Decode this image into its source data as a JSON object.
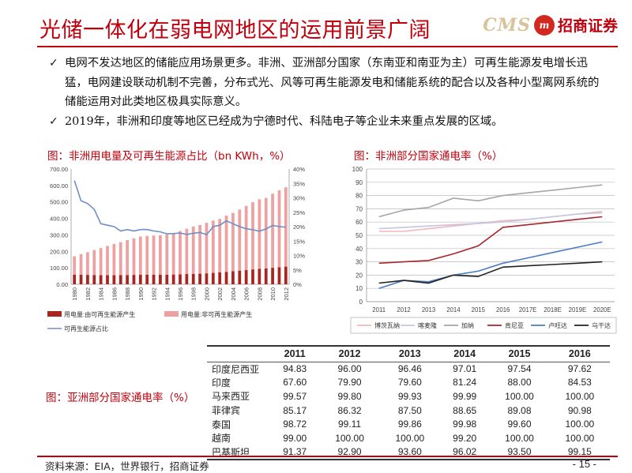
{
  "header": {
    "title": "光储一体化在弱电网地区的运用前景广阔",
    "logo_cms": "CMS",
    "logo_mark": "m",
    "logo_cn": "招商证券"
  },
  "bullets": [
    {
      "text": "电网不发达地区的储能应用场景更多。非洲、亚洲部分国家（东南亚和南亚为主）可再生能源发电增长迅猛，电网建设联动机制不完善，分布式光、风等可再生能源发电和储能系统的配合以及各种小型离网系统的储能运用对此类地区极具实际意义。"
    },
    {
      "text": "2019年，非洲和印度等地区已经成为宁德时代、科陆电子等企业未来重点发展的区域。"
    }
  ],
  "bullet_mark": "✓",
  "chart_data": [
    {
      "type": "bar",
      "title": "图：非洲用电量及可再生能源占比（bn KWh，%）",
      "categories": [
        "1980",
        "1981",
        "1982",
        "1983",
        "1984",
        "1985",
        "1986",
        "1987",
        "1988",
        "1989",
        "1990",
        "1991",
        "1992",
        "1993",
        "1994",
        "1995",
        "1996",
        "1997",
        "1998",
        "1999",
        "2000",
        "2001",
        "2002",
        "2003",
        "2004",
        "2005",
        "2006",
        "2007",
        "2008",
        "2009",
        "2010",
        "2011",
        "2012"
      ],
      "left_axis": {
        "ylim": [
          0,
          700
        ],
        "ticks": [
          "0.00",
          "100.00",
          "200.00",
          "300.00",
          "400.00",
          "500.00",
          "600.00",
          "700.00"
        ]
      },
      "right_axis": {
        "ylim": [
          0,
          40
        ],
        "ticks": [
          "0%",
          "5%",
          "10%",
          "15%",
          "20%",
          "25%",
          "30%",
          "35%",
          "40%"
        ]
      },
      "series": [
        {
          "name": "用电量:由可再生能源产生",
          "kind": "bar-stack",
          "color": "#a8261f",
          "values": [
            58,
            58,
            57,
            56,
            55,
            55,
            55,
            56,
            56,
            57,
            58,
            58,
            58,
            58,
            58,
            59,
            60,
            62,
            63,
            64,
            66,
            69,
            72,
            75,
            79,
            82,
            86,
            90,
            94,
            96,
            100,
            103,
            107
          ]
        },
        {
          "name": "用电量:非可再生能源产生",
          "kind": "bar-stack",
          "color": "#eea1a1",
          "values": [
            112,
            125,
            138,
            152,
            165,
            178,
            190,
            200,
            212,
            222,
            232,
            236,
            238,
            240,
            244,
            252,
            263,
            275,
            288,
            296,
            307,
            318,
            325,
            342,
            354,
            372,
            390,
            408,
            422,
            428,
            450,
            468,
            482
          ]
        },
        {
          "name": "可再生能源占比",
          "kind": "line",
          "axis": "right",
          "color": "#6d8ec8",
          "values": [
            36,
            29,
            28,
            26,
            21,
            20.5,
            20,
            18.5,
            19,
            18.5,
            19,
            19,
            18.5,
            18.2,
            17.5,
            17.6,
            17.8,
            17.3,
            17.7,
            18,
            17.2,
            20,
            20.5,
            22,
            21,
            20,
            19.3,
            18.9,
            18.4,
            19.2,
            20.4,
            20,
            19.8
          ]
        }
      ]
    },
    {
      "type": "line",
      "title": "图：非洲部分国家通电率（%）",
      "categories": [
        "2011",
        "2012",
        "2013",
        "2014",
        "2015",
        "2016",
        "2017E",
        "2018E",
        "2019E",
        "2020E"
      ],
      "ylim": [
        0,
        100
      ],
      "yticks": [
        "0",
        "10",
        "20",
        "30",
        "40",
        "50",
        "60",
        "70",
        "80",
        "90",
        "100"
      ],
      "series": [
        {
          "name": "博茨瓦纳",
          "color": "#f0b8b8",
          "values": [
            53,
            53,
            55,
            57,
            59,
            61,
            62,
            64,
            66,
            67
          ]
        },
        {
          "name": "喀麦隆",
          "color": "#c8c4e0",
          "values": [
            55,
            56,
            57,
            58,
            59,
            60,
            62,
            64,
            66,
            68
          ]
        },
        {
          "name": "加纳",
          "color": "#a6a6a6",
          "values": [
            64,
            69,
            71,
            78,
            76,
            80,
            82,
            84,
            86,
            88
          ]
        },
        {
          "name": "肯尼亚",
          "color": "#a8262c",
          "values": [
            29,
            30,
            31,
            36,
            42,
            56,
            58,
            60,
            62,
            64
          ]
        },
        {
          "name": "卢旺达",
          "color": "#4a7cc0",
          "values": [
            10,
            16,
            15,
            20,
            23,
            29,
            33,
            37,
            41,
            45
          ]
        },
        {
          "name": "乌干达",
          "color": "#222222",
          "values": [
            14,
            16,
            14,
            20,
            19,
            26,
            27,
            28,
            29,
            30
          ]
        }
      ]
    },
    {
      "type": "table",
      "title": "图：亚洲部分国家通电率（%）",
      "columns": [
        "",
        "2011",
        "2012",
        "2013",
        "2014",
        "2015",
        "2016"
      ],
      "rows": [
        [
          "印度尼西亚",
          "94.83",
          "96.00",
          "96.46",
          "97.01",
          "97.54",
          "97.62"
        ],
        [
          "印度",
          "67.60",
          "79.90",
          "79.60",
          "81.24",
          "88.00",
          "84.53"
        ],
        [
          "马来西亚",
          "99.57",
          "99.80",
          "99.93",
          "99.99",
          "100.00",
          "100.00"
        ],
        [
          "菲律宾",
          "85.17",
          "86.32",
          "87.50",
          "88.65",
          "89.08",
          "90.98"
        ],
        [
          "泰国",
          "98.72",
          "99.11",
          "99.86",
          "99.98",
          "99.60",
          "100.00"
        ],
        [
          "越南",
          "99.00",
          "100.00",
          "100.00",
          "99.20",
          "100.00",
          "100.00"
        ],
        [
          "巴基斯坦",
          "91.37",
          "92.90",
          "93.60",
          "96.02",
          "93.50",
          "99.15"
        ]
      ]
    }
  ],
  "footer": {
    "source": "资料来源：EIA，世界银行，招商证券",
    "page": "- 15 -"
  },
  "colors": {
    "brand": "#c0000c",
    "gold": "#d8c39a"
  }
}
